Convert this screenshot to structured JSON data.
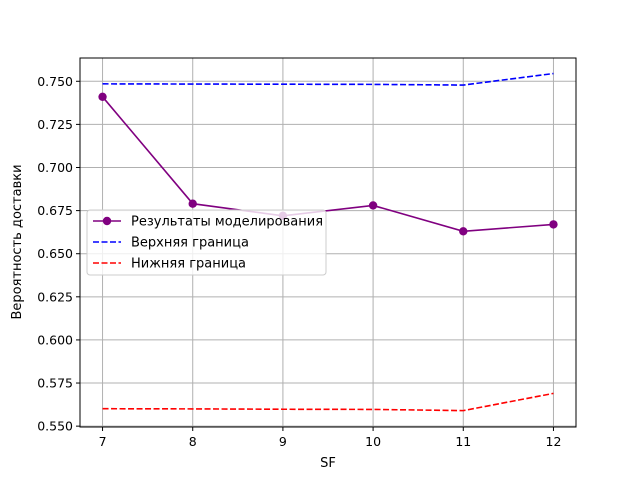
{
  "chart_data": {
    "type": "line",
    "title": "",
    "xlabel": "SF",
    "ylabel": "Вероятность доставки",
    "x": [
      7,
      8,
      9,
      10,
      11,
      12
    ],
    "xlim": [
      6.75,
      12.25
    ],
    "ylim": [
      0.5495,
      0.7635
    ],
    "xticks": [
      "7",
      "8",
      "9",
      "10",
      "11",
      "12"
    ],
    "yticks": [
      "0.550",
      "0.575",
      "0.600",
      "0.625",
      "0.650",
      "0.675",
      "0.700",
      "0.725",
      "0.750"
    ],
    "grid": true,
    "legend_position": "center-left",
    "series": [
      {
        "name": "Результаты моделирования",
        "values": [
          0.741,
          0.679,
          0.672,
          0.678,
          0.663,
          0.667
        ],
        "color": "#800080",
        "style": "solid",
        "marker": "circle"
      },
      {
        "name": "Верхняя граница",
        "values": [
          0.7485,
          0.7484,
          0.7483,
          0.7482,
          0.7478,
          0.7545
        ],
        "color": "#0000ff",
        "style": "dashed",
        "marker": "none"
      },
      {
        "name": "Нижняя граница",
        "values": [
          0.5601,
          0.56,
          0.5598,
          0.5597,
          0.559,
          0.569
        ],
        "color": "#ff0000",
        "style": "dashed",
        "marker": "none"
      }
    ]
  }
}
